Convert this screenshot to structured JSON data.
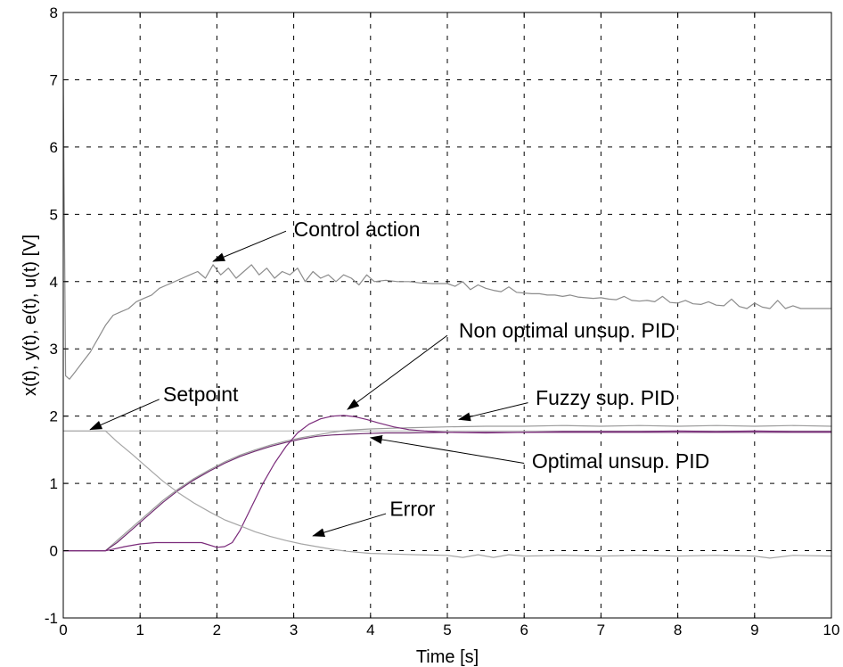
{
  "chart_data": {
    "type": "line",
    "xlabel": "Time [s]",
    "ylabel": "x(t), y(t), e(t), u(t) [V]",
    "xlim": [
      0,
      10
    ],
    "ylim": [
      -1,
      8
    ],
    "xticks": [
      "0",
      "1",
      "2",
      "3",
      "4",
      "5",
      "6",
      "7",
      "8",
      "9",
      "10"
    ],
    "yticks": [
      "-1",
      "0",
      "1",
      "2",
      "3",
      "4",
      "5",
      "6",
      "7",
      "8"
    ],
    "grid": true,
    "series": [
      {
        "name": "Control action",
        "color": "#8c8c8c",
        "x": [
          0,
          0.03,
          0.08,
          0.15,
          0.25,
          0.35,
          0.45,
          0.55,
          0.65,
          0.75,
          0.85,
          0.95,
          1.05,
          1.15,
          1.25,
          1.35,
          1.45,
          1.55,
          1.65,
          1.75,
          1.85,
          1.95,
          2.05,
          2.15,
          2.25,
          2.35,
          2.45,
          2.55,
          2.65,
          2.75,
          2.85,
          2.95,
          3.05,
          3.15,
          3.25,
          3.35,
          3.45,
          3.55,
          3.65,
          3.75,
          3.85,
          3.95,
          4.05,
          4.2,
          4.35,
          4.5,
          4.65,
          4.8,
          5.0,
          5.1,
          5.2,
          5.3,
          5.4,
          5.5,
          5.6,
          5.7,
          5.8,
          5.9,
          6.0,
          6.1,
          6.2,
          6.3,
          6.4,
          6.5,
          6.6,
          6.7,
          6.8,
          6.9,
          7.0,
          7.1,
          7.2,
          7.3,
          7.4,
          7.5,
          7.6,
          7.7,
          7.8,
          7.9,
          8.0,
          8.1,
          8.2,
          8.3,
          8.4,
          8.5,
          8.6,
          8.7,
          8.8,
          8.9,
          9.0,
          9.1,
          9.2,
          9.3,
          9.4,
          9.5,
          9.6,
          9.7,
          9.8,
          9.9,
          10.0
        ],
        "values": [
          7.0,
          2.6,
          2.55,
          2.65,
          2.8,
          2.95,
          3.15,
          3.35,
          3.5,
          3.55,
          3.6,
          3.7,
          3.75,
          3.8,
          3.9,
          3.95,
          4.0,
          4.05,
          4.1,
          4.15,
          4.05,
          4.25,
          4.1,
          4.2,
          4.05,
          4.15,
          4.25,
          4.1,
          4.2,
          4.05,
          4.15,
          4.1,
          4.2,
          4.0,
          4.15,
          4.05,
          4.1,
          4.0,
          4.1,
          4.05,
          3.95,
          4.1,
          4.0,
          4.02,
          4.0,
          4.0,
          3.98,
          3.97,
          3.97,
          3.93,
          4.0,
          3.88,
          3.95,
          3.9,
          3.87,
          3.85,
          3.92,
          3.84,
          3.83,
          3.82,
          3.82,
          3.8,
          3.8,
          3.78,
          3.8,
          3.77,
          3.76,
          3.75,
          3.76,
          3.74,
          3.73,
          3.78,
          3.72,
          3.71,
          3.72,
          3.7,
          3.78,
          3.69,
          3.68,
          3.72,
          3.67,
          3.66,
          3.7,
          3.65,
          3.64,
          3.74,
          3.63,
          3.6,
          3.68,
          3.62,
          3.6,
          3.72,
          3.6,
          3.64,
          3.6,
          3.6,
          3.6,
          3.6,
          3.6
        ]
      },
      {
        "name": "Setpoint",
        "color": "#bdbdbd",
        "x": [
          0,
          10
        ],
        "values": [
          1.78,
          1.78
        ]
      },
      {
        "name": "Fuzzy sup. PID",
        "color": "#9c9c9c",
        "x": [
          0,
          0.55,
          0.7,
          0.9,
          1.1,
          1.3,
          1.5,
          1.7,
          1.9,
          2.1,
          2.3,
          2.5,
          2.7,
          2.9,
          3.1,
          3.3,
          3.5,
          3.7,
          4.0,
          4.3,
          4.6,
          5.0,
          5.5,
          6.0,
          6.5,
          7.0,
          7.5,
          8.0,
          8.5,
          9.0,
          9.5,
          10.0
        ],
        "values": [
          0,
          0,
          0.15,
          0.35,
          0.55,
          0.75,
          0.92,
          1.07,
          1.2,
          1.32,
          1.42,
          1.5,
          1.57,
          1.63,
          1.68,
          1.72,
          1.76,
          1.79,
          1.81,
          1.82,
          1.83,
          1.84,
          1.85,
          1.85,
          1.86,
          1.85,
          1.86,
          1.85,
          1.86,
          1.85,
          1.86,
          1.85
        ]
      },
      {
        "name": "Optimal unsup. PID",
        "color": "#6e2a6e",
        "x": [
          0,
          0.55,
          0.7,
          0.9,
          1.1,
          1.3,
          1.5,
          1.7,
          1.9,
          2.1,
          2.3,
          2.5,
          2.7,
          2.9,
          3.1,
          3.3,
          3.5,
          3.7,
          3.9,
          4.2,
          4.5,
          5.0,
          5.5,
          6.0,
          6.5,
          7.0,
          7.5,
          8.0,
          8.5,
          9.0,
          9.5,
          10.0
        ],
        "values": [
          0,
          0,
          0.12,
          0.32,
          0.52,
          0.72,
          0.9,
          1.05,
          1.18,
          1.3,
          1.4,
          1.48,
          1.55,
          1.61,
          1.66,
          1.7,
          1.72,
          1.73,
          1.74,
          1.75,
          1.75,
          1.76,
          1.76,
          1.76,
          1.76,
          1.76,
          1.76,
          1.76,
          1.76,
          1.76,
          1.76,
          1.76
        ]
      },
      {
        "name": "Non optimal unsup. PID",
        "color": "#7a2a7a",
        "x": [
          0,
          0.55,
          0.6,
          0.8,
          1.0,
          1.2,
          1.4,
          1.6,
          1.8,
          2.0,
          2.1,
          2.2,
          2.3,
          2.45,
          2.6,
          2.75,
          2.9,
          3.05,
          3.2,
          3.35,
          3.5,
          3.65,
          3.8,
          3.95,
          4.1,
          4.3,
          4.5,
          4.7,
          5.0,
          5.5,
          6.0,
          6.5,
          7.0,
          7.5,
          8.0,
          8.5,
          9.0,
          9.5,
          10.0
        ],
        "values": [
          0,
          0,
          0.01,
          0.06,
          0.1,
          0.12,
          0.12,
          0.12,
          0.12,
          0.05,
          0.06,
          0.12,
          0.3,
          0.65,
          1.0,
          1.3,
          1.55,
          1.75,
          1.88,
          1.96,
          2.0,
          2.01,
          1.99,
          1.95,
          1.9,
          1.84,
          1.8,
          1.78,
          1.76,
          1.75,
          1.76,
          1.77,
          1.77,
          1.77,
          1.78,
          1.77,
          1.78,
          1.77,
          1.77
        ]
      },
      {
        "name": "Error",
        "color": "#a6a6a6",
        "x": [
          0,
          0.55,
          0.7,
          0.9,
          1.1,
          1.3,
          1.5,
          1.7,
          1.9,
          2.1,
          2.3,
          2.5,
          2.7,
          2.9,
          3.1,
          3.3,
          3.5,
          3.7,
          4.0,
          4.3,
          4.6,
          5.0,
          5.2,
          5.4,
          5.6,
          5.8,
          6.0,
          6.5,
          7.0,
          7.5,
          8.0,
          8.5,
          9.0,
          9.2,
          9.5,
          10.0
        ],
        "values": [
          1.78,
          1.78,
          1.62,
          1.43,
          1.23,
          1.03,
          0.86,
          0.71,
          0.58,
          0.46,
          0.37,
          0.28,
          0.21,
          0.15,
          0.1,
          0.06,
          0.02,
          -0.01,
          -0.04,
          -0.05,
          -0.06,
          -0.07,
          -0.1,
          -0.06,
          -0.1,
          -0.06,
          -0.08,
          -0.07,
          -0.08,
          -0.07,
          -0.08,
          -0.07,
          -0.08,
          -0.11,
          -0.07,
          -0.08
        ]
      }
    ],
    "annotations": [
      {
        "text": "Control action",
        "text_x": 3.0,
        "text_y": 4.67,
        "arrow_from": [
          2.9,
          4.75
        ],
        "arrow_to": [
          1.95,
          4.3
        ]
      },
      {
        "text": "Setpoint",
        "text_x": 1.3,
        "text_y": 2.22,
        "arrow_from": [
          1.25,
          2.25
        ],
        "arrow_to": [
          0.35,
          1.8
        ]
      },
      {
        "text": "Non optimal unsup. PID",
        "text_x": 5.15,
        "text_y": 3.17,
        "arrow_from": [
          5.0,
          3.2
        ],
        "arrow_to": [
          3.7,
          2.1
        ]
      },
      {
        "text": "Fuzzy sup. PID",
        "text_x": 6.15,
        "text_y": 2.17,
        "arrow_from": [
          6.05,
          2.2
        ],
        "arrow_to": [
          5.15,
          1.95
        ]
      },
      {
        "text": "Optimal unsup. PID",
        "text_x": 6.1,
        "text_y": 1.23,
        "arrow_from": [
          6.0,
          1.3
        ],
        "arrow_to": [
          4.0,
          1.68
        ]
      },
      {
        "text": "Error",
        "text_x": 4.25,
        "text_y": 0.52,
        "arrow_from": [
          4.2,
          0.55
        ],
        "arrow_to": [
          3.25,
          0.22
        ]
      }
    ]
  }
}
